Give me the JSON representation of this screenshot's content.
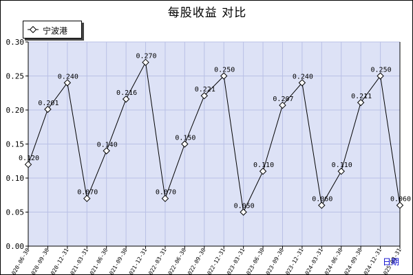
{
  "chart_data": {
    "type": "line",
    "title": "每股收益  对比",
    "xlabel": "日期",
    "ylabel": "",
    "ylim": [
      0.0,
      0.3
    ],
    "yticks": [
      "0.00",
      "0.05",
      "0.10",
      "0.15",
      "0.20",
      "0.25",
      "0.30"
    ],
    "grid": true,
    "legend_position": "top-left",
    "categories": [
      "2020-06-30",
      "2020-09-30",
      "2020-12-31",
      "2021-03-31",
      "2021-06-30",
      "2021-09-30",
      "2021-12-31",
      "2022-03-31",
      "2022-06-30",
      "2022-09-30",
      "2022-12-31",
      "2023-03-31",
      "2023-06-30",
      "2023-09-30",
      "2023-12-31",
      "2024-03-31",
      "2024-06-30",
      "2024-09-30",
      "2024-12-31",
      "2025-03-31"
    ],
    "series": [
      {
        "name": "宁波港",
        "values": [
          0.12,
          0.201,
          0.24,
          0.07,
          0.14,
          0.216,
          0.27,
          0.07,
          0.15,
          0.221,
          0.25,
          0.05,
          0.11,
          0.207,
          0.24,
          0.06,
          0.11,
          0.211,
          0.25,
          0.06
        ],
        "labels": [
          "0.120",
          "0.201",
          "0.240",
          "0.070",
          "0.140",
          "0.216",
          "0.270",
          "0.070",
          "0.150",
          "0.221",
          "0.250",
          "0.050",
          "0.110",
          "0.207",
          "0.240",
          "0.060",
          "0.110",
          "0.211",
          "0.250",
          "0.060"
        ]
      }
    ],
    "colors": {
      "plot_background": "#dde2f6",
      "grid": "#b9c0e6",
      "line": "#000000",
      "axis_label_accent": "#0000cc"
    }
  }
}
